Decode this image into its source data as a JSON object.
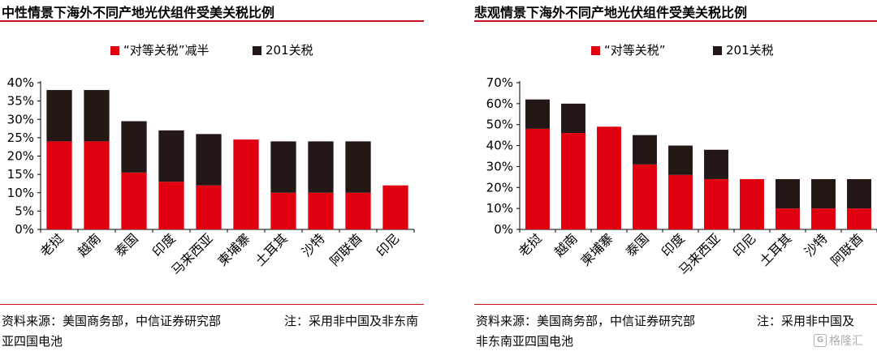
{
  "left": {
    "title": "中性情景下海外不同产地光伏组件受美关税比例",
    "source": "资料来源：美国商务部，中信证券研究部",
    "note_line1": "注：采用非中国及非东南",
    "note_line2": "亚四国电池"
  },
  "right": {
    "title": "悲观情景下海外不同产地光伏组件受美关税比例",
    "source": "资料来源：美国商务部，中信证券研究部",
    "note_line1": "注：采用非中国及",
    "note_line2": "非东南亚四国电池"
  },
  "watermark": {
    "icon": "G",
    "text": "格隆汇"
  },
  "colors": {
    "red": "#e00010",
    "black": "#231815",
    "rule": "#c8101e"
  },
  "chart_data": [
    {
      "type": "bar",
      "stacked": true,
      "categories": [
        "老挝",
        "越南",
        "泰国",
        "印度",
        "马来西亚",
        "柬埔寨",
        "土耳其",
        "沙特",
        "阿联酋",
        "印尼"
      ],
      "series": [
        {
          "name": "“对等关税”减半",
          "color": "#e00010",
          "values": [
            24,
            24,
            15.5,
            13,
            12,
            24.5,
            10,
            10,
            10,
            12
          ]
        },
        {
          "name": "201关税",
          "color": "#231815",
          "values": [
            14,
            14,
            14,
            14,
            14,
            0,
            14,
            14,
            14,
            0
          ]
        }
      ],
      "ylim": [
        0,
        40
      ],
      "yticks": [
        "0%",
        "5%",
        "10%",
        "15%",
        "20%",
        "25%",
        "30%",
        "35%",
        "40%"
      ],
      "ytick_values": [
        0,
        5,
        10,
        15,
        20,
        25,
        30,
        35,
        40
      ],
      "legend_position": "top-center",
      "grid": false
    },
    {
      "type": "bar",
      "stacked": true,
      "categories": [
        "老挝",
        "越南",
        "柬埔寨",
        "泰国",
        "印度",
        "马来西亚",
        "印尼",
        "土耳其",
        "沙特",
        "阿联酋"
      ],
      "series": [
        {
          "name": "“对等关税”",
          "color": "#e00010",
          "values": [
            48,
            46,
            49,
            31,
            26,
            24,
            24,
            10,
            10,
            10
          ]
        },
        {
          "name": "201关税",
          "color": "#231815",
          "values": [
            14,
            14,
            0,
            14,
            14,
            14,
            0,
            14,
            14,
            14
          ]
        }
      ],
      "ylim": [
        0,
        70
      ],
      "yticks": [
        "0%",
        "10%",
        "20%",
        "30%",
        "40%",
        "50%",
        "60%",
        "70%"
      ],
      "ytick_values": [
        0,
        10,
        20,
        30,
        40,
        50,
        60,
        70
      ],
      "legend_position": "top-center",
      "grid": false
    }
  ]
}
